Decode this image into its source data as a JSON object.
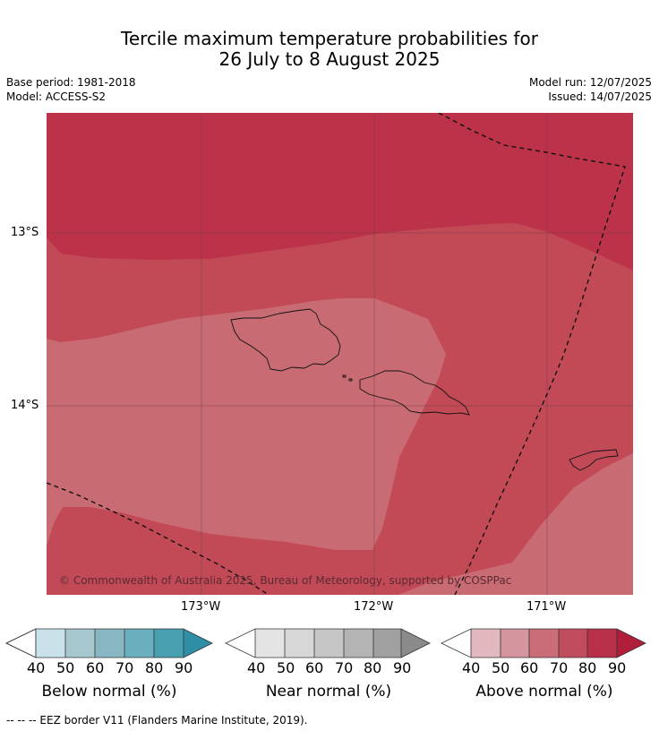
{
  "title_line1": "Tercile maximum temperature probabilities for",
  "title_line2": "26 July to 8 August 2025",
  "base_period": "Base period: 1981-2018",
  "model": "Model: ACCESS-S2",
  "model_run": "Model run: 12/07/2025",
  "issued": "Issued: 14/07/2025",
  "lat_labels": [
    "13°S",
    "14°S"
  ],
  "lon_labels": [
    "173°W",
    "172°W",
    "171°W"
  ],
  "copyright": "© Commonwealth of Australia 2025, Bureau of Meteorology, supported by COSPPac",
  "colorbars": [
    {
      "label": "Below normal (%)",
      "ticks": [
        "40",
        "50",
        "60",
        "70",
        "80",
        "90"
      ],
      "colors": [
        "#c9e2e9",
        "#a6c7ce",
        "#88b7c3",
        "#6baebd",
        "#479fb0",
        "#2e8ea4"
      ]
    },
    {
      "label": "Near normal (%)",
      "ticks": [
        "40",
        "50",
        "60",
        "70",
        "80",
        "90"
      ],
      "colors": [
        "#e4e4e4",
        "#d7d7d7",
        "#c6c6c6",
        "#b4b4b4",
        "#a0a0a0",
        "#8a8a8a"
      ]
    },
    {
      "label": "Above normal (%)",
      "ticks": [
        "40",
        "50",
        "60",
        "70",
        "80",
        "90"
      ],
      "colors": [
        "#e2b7bd",
        "#d4959f",
        "#ca6d78",
        "#c04c5c",
        "#b8304a",
        "#b01e3a"
      ]
    }
  ],
  "footer": "--  --  -- EEZ border V11 (Flanders Marine Institute, 2019)."
}
